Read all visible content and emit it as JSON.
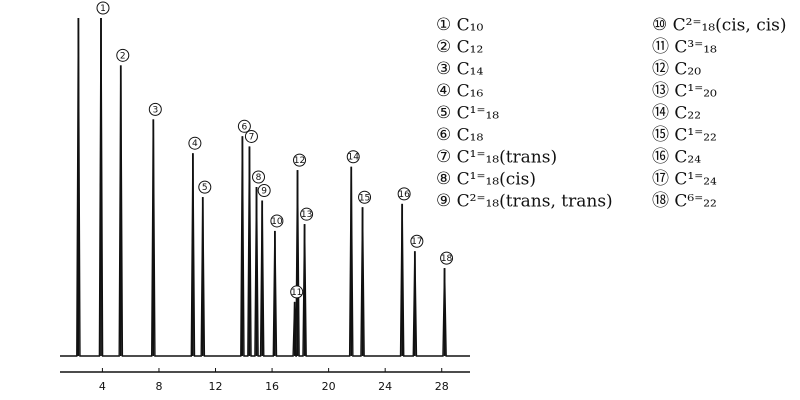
{
  "chart_data": {
    "type": "line",
    "title": "",
    "xlabel": "",
    "ylabel": "",
    "x_ticks": [
      4,
      8,
      12,
      16,
      20,
      24,
      28
    ],
    "xlim": [
      1,
      30
    ],
    "ylim": [
      0,
      1
    ],
    "series": [
      {
        "values": [
          {
            "x": 2.3,
            "y": 1.0,
            "label": ""
          },
          {
            "x": 3.9,
            "y": 1.0,
            "label": "1"
          },
          {
            "x": 5.3,
            "y": 0.86,
            "label": "2"
          },
          {
            "x": 7.6,
            "y": 0.7,
            "label": "3"
          },
          {
            "x": 10.4,
            "y": 0.6,
            "label": "4"
          },
          {
            "x": 11.1,
            "y": 0.47,
            "label": "5"
          },
          {
            "x": 13.9,
            "y": 0.65,
            "label": "6"
          },
          {
            "x": 14.4,
            "y": 0.62,
            "label": "7"
          },
          {
            "x": 14.9,
            "y": 0.5,
            "label": "8"
          },
          {
            "x": 15.3,
            "y": 0.46,
            "label": "9"
          },
          {
            "x": 16.2,
            "y": 0.37,
            "label": "10"
          },
          {
            "x": 17.6,
            "y": 0.16,
            "label": "11"
          },
          {
            "x": 17.8,
            "y": 0.55,
            "label": "12"
          },
          {
            "x": 18.3,
            "y": 0.39,
            "label": "13"
          },
          {
            "x": 21.6,
            "y": 0.56,
            "label": "14"
          },
          {
            "x": 22.4,
            "y": 0.44,
            "label": "15"
          },
          {
            "x": 25.2,
            "y": 0.45,
            "label": "16"
          },
          {
            "x": 26.1,
            "y": 0.31,
            "label": "17"
          },
          {
            "x": 28.2,
            "y": 0.26,
            "label": "18"
          }
        ]
      }
    ],
    "legend": [
      {
        "num": "①",
        "label": "C₁₀"
      },
      {
        "num": "②",
        "label": "C₁₂"
      },
      {
        "num": "③",
        "label": "C₁₄"
      },
      {
        "num": "④",
        "label": "C₁₆"
      },
      {
        "num": "⑤",
        "label": "C¹⁼₁₈"
      },
      {
        "num": "⑥",
        "label": "C₁₈"
      },
      {
        "num": "⑦",
        "label": "C¹⁼₁₈(trans)"
      },
      {
        "num": "⑧",
        "label": "C¹⁼₁₈(cis)"
      },
      {
        "num": "⑨",
        "label": "C²⁼₁₈(trans, trans)"
      },
      {
        "num": "⑩",
        "label": "C²⁼₁₈(cis, cis)"
      },
      {
        "num": "⑪",
        "label": "C³⁼₁₈"
      },
      {
        "num": "⑫",
        "label": "C₂₀"
      },
      {
        "num": "⑬",
        "label": "C¹⁼₂₀"
      },
      {
        "num": "⑭",
        "label": "C₂₂"
      },
      {
        "num": "⑮",
        "label": "C¹⁼₂₂"
      },
      {
        "num": "⑯",
        "label": "C₂₄"
      },
      {
        "num": "⑰",
        "label": "C¹⁼₂₄"
      },
      {
        "num": "⑱",
        "label": "C⁶⁼₂₂"
      }
    ],
    "grid": false,
    "legend_placement": "right"
  }
}
